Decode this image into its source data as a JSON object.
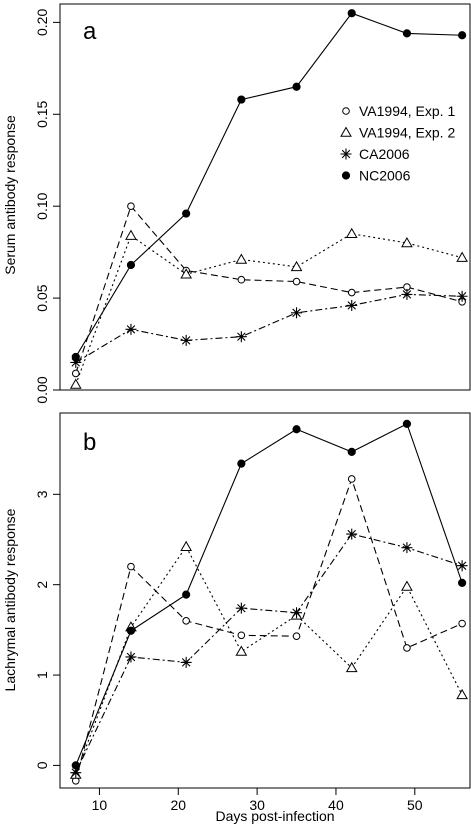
{
  "figure": {
    "xlabel": "Days post-infection",
    "legend": [
      {
        "name": "VA1994, Exp. 1",
        "marker": "circle-open",
        "dash": "long"
      },
      {
        "name": "VA1994, Exp. 2",
        "marker": "triangle-open",
        "dash": "dot"
      },
      {
        "name": "CA2006",
        "marker": "star",
        "dash": "dashdot"
      },
      {
        "name": "NC2006",
        "marker": "circle-filled",
        "dash": "solid"
      }
    ]
  },
  "chart_data": [
    {
      "type": "line",
      "panel_label": "a",
      "ylabel": "Serum antibody response",
      "xlabel": "Days post-infection",
      "xlim": [
        5,
        57
      ],
      "ylim": [
        0,
        0.21
      ],
      "xticks": [
        10,
        20,
        30,
        40,
        50
      ],
      "yticks": [
        0.0,
        0.05,
        0.1,
        0.15,
        0.2
      ],
      "ytick_labels": [
        "0.00",
        "0.05",
        "0.10",
        "0.15",
        "0.20"
      ],
      "legend_position": "top-right",
      "series": [
        {
          "name": "VA1994, Exp. 1",
          "x": [
            7,
            14,
            21,
            28,
            35,
            42,
            49,
            56
          ],
          "values": [
            0.009,
            0.1,
            0.065,
            0.06,
            0.059,
            0.053,
            0.056,
            0.048
          ]
        },
        {
          "name": "VA1994, Exp. 2",
          "x": [
            7,
            14,
            21,
            28,
            35,
            42,
            49,
            56
          ],
          "values": [
            0.003,
            0.084,
            0.063,
            0.071,
            0.067,
            0.085,
            0.08,
            0.072
          ]
        },
        {
          "name": "CA2006",
          "x": [
            7,
            14,
            21,
            28,
            35,
            42,
            49,
            56
          ],
          "values": [
            0.015,
            0.033,
            0.027,
            0.029,
            0.042,
            0.046,
            0.052,
            0.051
          ]
        },
        {
          "name": "NC2006",
          "x": [
            7,
            14,
            21,
            28,
            35,
            42,
            49,
            56
          ],
          "values": [
            0.018,
            0.068,
            0.096,
            0.158,
            0.165,
            0.205,
            0.194,
            0.193
          ]
        }
      ]
    },
    {
      "type": "line",
      "panel_label": "b",
      "ylabel": "Lachrymal antibody response",
      "xlabel": "Days post-infection",
      "xlim": [
        5,
        57
      ],
      "ylim": [
        -0.25,
        3.9
      ],
      "xticks": [
        10,
        20,
        30,
        40,
        50
      ],
      "xtick_labels": [
        "10",
        "20",
        "30",
        "40",
        "50"
      ],
      "yticks": [
        0,
        1,
        2,
        3
      ],
      "ytick_labels": [
        "0",
        "1",
        "2",
        "3"
      ],
      "series": [
        {
          "name": "VA1994, Exp. 1",
          "x": [
            7,
            14,
            21,
            28,
            35,
            42,
            49,
            56
          ],
          "values": [
            -0.17,
            2.2,
            1.6,
            1.44,
            1.43,
            3.17,
            1.3,
            1.57
          ]
        },
        {
          "name": "VA1994, Exp. 2",
          "x": [
            7,
            14,
            21,
            28,
            35,
            42,
            49,
            56
          ],
          "values": [
            -0.1,
            1.53,
            2.42,
            1.26,
            1.66,
            1.08,
            1.98,
            0.78
          ]
        },
        {
          "name": "CA2006",
          "x": [
            7,
            14,
            21,
            28,
            35,
            42,
            49,
            56
          ],
          "values": [
            -0.08,
            1.2,
            1.14,
            1.74,
            1.69,
            2.56,
            2.41,
            2.21
          ]
        },
        {
          "name": "NC2006",
          "x": [
            7,
            14,
            21,
            28,
            35,
            42,
            49,
            56
          ],
          "values": [
            0.0,
            1.49,
            1.89,
            3.34,
            3.72,
            3.47,
            3.78,
            2.02
          ]
        }
      ]
    }
  ]
}
